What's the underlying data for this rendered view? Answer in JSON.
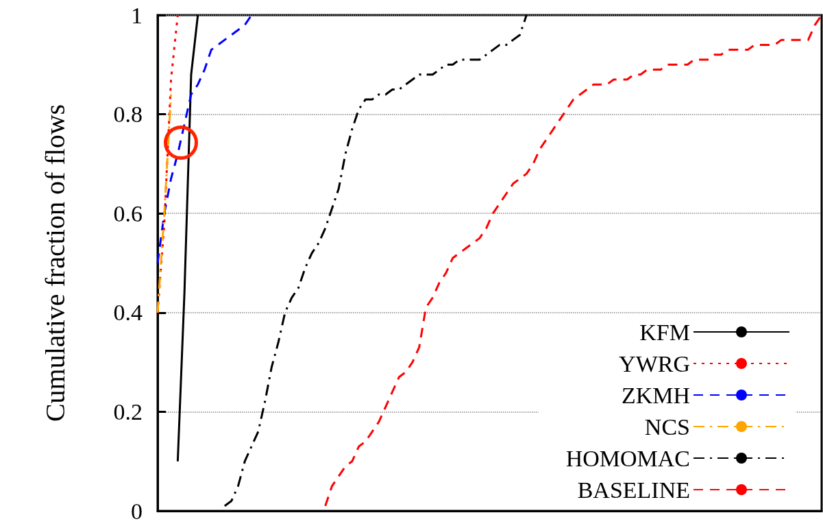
{
  "chart_data": {
    "type": "line",
    "ylabel": "Cumulative fraction of flows",
    "categories": [
      null,
      null,
      null,
      null,
      null,
      null,
      null,
      null,
      null,
      null,
      null,
      null,
      null,
      null,
      null,
      null,
      null,
      null,
      null,
      null,
      null,
      null,
      null,
      null,
      null,
      null,
      null,
      null,
      null,
      null,
      null,
      null,
      null,
      null,
      null,
      null,
      null,
      null,
      null,
      null,
      null,
      null,
      null,
      null,
      null,
      null,
      null,
      null,
      null,
      null,
      null,
      null,
      null,
      null,
      null,
      null,
      null,
      null,
      null,
      null,
      null,
      null,
      null,
      null,
      null,
      null,
      null,
      null,
      null,
      null,
      null,
      null,
      null,
      null,
      null,
      null,
      null,
      null,
      null,
      null,
      null,
      null,
      null,
      null,
      null,
      null,
      null,
      null,
      null,
      null,
      null,
      null,
      null,
      null,
      null,
      null,
      null,
      null,
      null,
      null
    ],
    "series": [
      {
        "name": "KFM",
        "color": "#000000",
        "line_style": "solid",
        "values": [
          null,
          null,
          null,
          0.1,
          0.44,
          0.88,
          1,
          null,
          null,
          null,
          null,
          null,
          null,
          null,
          null,
          null,
          null,
          null,
          null,
          null,
          null,
          null,
          null,
          null,
          null,
          null,
          null,
          null,
          null,
          null,
          null,
          null,
          null,
          null,
          null,
          null,
          null,
          null,
          null,
          null,
          null,
          null,
          null,
          null,
          null,
          null,
          null,
          null,
          null,
          null,
          null,
          null,
          null,
          null,
          null,
          null,
          null,
          null,
          null,
          null,
          null,
          null,
          null,
          null,
          null,
          null,
          null,
          null,
          null,
          null,
          null,
          null,
          null,
          null,
          null,
          null,
          null,
          null,
          null,
          null,
          null,
          null,
          null,
          null,
          null,
          null,
          null,
          null,
          null,
          null,
          null,
          null,
          null,
          null,
          null,
          null,
          null,
          null,
          null,
          null
        ]
      },
      {
        "name": "YWRG",
        "color": "#ff0000",
        "line_style": "dotted",
        "values": [
          0.4,
          0.58,
          0.87,
          1,
          null,
          null,
          null,
          null,
          null,
          null,
          null,
          null,
          null,
          null,
          null,
          null,
          null,
          null,
          null,
          null,
          null,
          null,
          null,
          null,
          null,
          null,
          null,
          null,
          null,
          null,
          null,
          null,
          null,
          null,
          null,
          null,
          null,
          null,
          null,
          null,
          null,
          null,
          null,
          null,
          null,
          null,
          null,
          null,
          null,
          null,
          null,
          null,
          null,
          null,
          null,
          null,
          null,
          null,
          null,
          null,
          null,
          null,
          null,
          null,
          null,
          null,
          null,
          null,
          null,
          null,
          null,
          null,
          null,
          null,
          null,
          null,
          null,
          null,
          null,
          null,
          null,
          null,
          null,
          null,
          null,
          null,
          null,
          null,
          null,
          null,
          null,
          null,
          null,
          null,
          null,
          null,
          null,
          null,
          null,
          null
        ]
      },
      {
        "name": "ZKMH",
        "color": "#0000ff",
        "line_style": "dashed",
        "values": [
          0.5,
          0.6,
          0.67,
          0.72,
          0.78,
          0.84,
          0.86,
          0.89,
          0.93,
          0.94,
          0.95,
          0.96,
          0.97,
          0.98,
          1,
          null,
          null,
          null,
          null,
          null,
          null,
          null,
          null,
          null,
          null,
          null,
          null,
          null,
          null,
          null,
          null,
          null,
          null,
          null,
          null,
          null,
          null,
          null,
          null,
          null,
          null,
          null,
          null,
          null,
          null,
          null,
          null,
          null,
          null,
          null,
          null,
          null,
          null,
          null,
          null,
          null,
          null,
          null,
          null,
          null,
          null,
          null,
          null,
          null,
          null,
          null,
          null,
          null,
          null,
          null,
          null,
          null,
          null,
          null,
          null,
          null,
          null,
          null,
          null,
          null,
          null,
          null,
          null,
          null,
          null,
          null,
          null,
          null,
          null,
          null,
          null,
          null,
          null,
          null,
          null,
          null,
          null,
          null,
          null,
          null
        ]
      },
      {
        "name": "NCS",
        "color": "#ffa500",
        "line_style": "dashdot",
        "values": [
          0.4,
          0.6,
          0.84,
          null,
          null,
          null,
          null,
          null,
          null,
          null,
          null,
          null,
          null,
          null,
          null,
          null,
          null,
          null,
          null,
          null,
          null,
          null,
          null,
          null,
          null,
          null,
          null,
          null,
          null,
          null,
          null,
          null,
          null,
          null,
          null,
          null,
          null,
          null,
          null,
          null,
          null,
          null,
          null,
          null,
          null,
          null,
          null,
          null,
          null,
          null,
          null,
          null,
          null,
          null,
          null,
          null,
          null,
          null,
          null,
          null,
          null,
          null,
          null,
          null,
          null,
          null,
          null,
          null,
          null,
          null,
          null,
          null,
          null,
          null,
          null,
          null,
          null,
          null,
          null,
          null,
          null,
          null,
          null,
          null,
          null,
          null,
          null,
          null,
          null,
          null,
          null,
          null,
          null,
          null,
          null,
          null,
          null,
          null,
          null,
          null
        ]
      },
      {
        "name": "HOMOMAC",
        "color": "#000000",
        "line_style": "dashdot",
        "values": [
          null,
          null,
          null,
          null,
          null,
          null,
          null,
          null,
          null,
          null,
          0.01,
          0.02,
          0.05,
          0.1,
          0.13,
          0.16,
          0.22,
          0.29,
          0.34,
          0.4,
          0.43,
          0.45,
          0.49,
          0.52,
          0.54,
          0.57,
          0.61,
          0.65,
          0.72,
          0.77,
          0.81,
          0.83,
          0.83,
          0.84,
          0.84,
          0.85,
          0.85,
          0.86,
          0.87,
          0.88,
          0.88,
          0.88,
          0.89,
          0.9,
          0.9,
          0.91,
          0.91,
          0.91,
          0.91,
          0.92,
          0.93,
          0.94,
          0.94,
          0.95,
          0.96,
          1,
          null,
          null,
          null,
          null,
          null,
          null,
          null,
          null,
          null,
          null,
          null,
          null,
          null,
          null,
          null,
          null,
          null,
          null,
          null,
          null,
          null,
          null,
          null,
          null,
          null,
          null,
          null,
          null,
          null,
          null,
          null,
          null,
          null,
          null,
          null,
          null,
          null,
          null,
          null,
          null,
          null,
          null,
          null,
          null
        ]
      },
      {
        "name": "BASELINE",
        "color": "#ff0000",
        "line_style": "dashed",
        "values": [
          null,
          null,
          null,
          null,
          null,
          null,
          null,
          null,
          null,
          null,
          null,
          null,
          null,
          null,
          null,
          null,
          null,
          null,
          null,
          null,
          null,
          null,
          null,
          null,
          null,
          0.01,
          0.05,
          0.07,
          0.09,
          0.1,
          0.13,
          0.14,
          0.16,
          0.18,
          0.21,
          0.24,
          0.27,
          0.28,
          0.3,
          0.33,
          0.41,
          0.43,
          0.46,
          0.48,
          0.51,
          0.52,
          0.53,
          0.54,
          0.55,
          0.57,
          0.6,
          0.62,
          0.64,
          0.66,
          0.67,
          0.68,
          0.7,
          0.73,
          0.75,
          0.77,
          0.79,
          0.81,
          0.83,
          0.84,
          0.85,
          0.86,
          0.86,
          0.86,
          0.87,
          0.87,
          0.87,
          0.88,
          0.88,
          0.89,
          0.89,
          0.89,
          0.9,
          0.9,
          0.9,
          0.9,
          0.91,
          0.91,
          0.91,
          0.92,
          0.92,
          0.93,
          0.93,
          0.93,
          0.93,
          0.94,
          0.94,
          0.94,
          0.94,
          0.95,
          0.95,
          0.95,
          0.95,
          0.95,
          0.98,
          1
        ]
      }
    ],
    "ylim": [
      0,
      1
    ],
    "yticks": [
      0,
      0.2,
      0.4,
      0.6,
      0.8,
      1
    ],
    "tick_labels": "y",
    "grid": "y",
    "legend": "bottom right",
    "marker": "none"
  }
}
